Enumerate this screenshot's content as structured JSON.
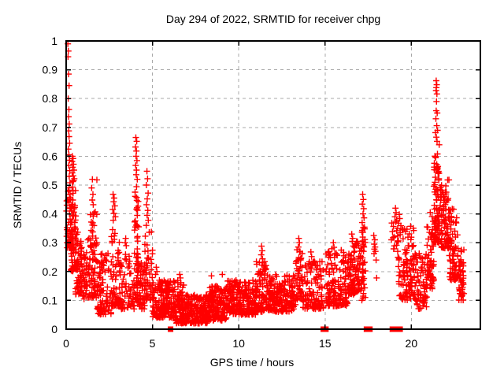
{
  "figure": {
    "background": "#ffffff"
  },
  "chart_data": {
    "type": "scatter",
    "title": "Day 294 of 2022, SRMTID for receiver chpg",
    "xlabel": "GPS time / hours",
    "ylabel": "SRMTID / TECUs",
    "series_name": "SRMTID",
    "xlim": [
      0,
      24
    ],
    "ylim": [
      0,
      1
    ],
    "xticks": [
      {
        "v": 0,
        "label": "0"
      },
      {
        "v": 5,
        "label": "5"
      },
      {
        "v": 10,
        "label": "10"
      },
      {
        "v": 15,
        "label": "15"
      },
      {
        "v": 20,
        "label": "20"
      }
    ],
    "yticks": [
      {
        "v": 0,
        "label": "0"
      },
      {
        "v": 0.1,
        "label": "0.1"
      },
      {
        "v": 0.2,
        "label": "0.2"
      },
      {
        "v": 0.3,
        "label": "0.3"
      },
      {
        "v": 0.4,
        "label": "0.4"
      },
      {
        "v": 0.5,
        "label": "0.5"
      },
      {
        "v": 0.6,
        "label": "0.6"
      },
      {
        "v": 0.7,
        "label": "0.7"
      },
      {
        "v": 0.8,
        "label": "0.8"
      },
      {
        "v": 0.9,
        "label": "0.9"
      },
      {
        "v": 1,
        "label": "1"
      }
    ],
    "grid": true,
    "legend": "none",
    "marker": "plus-cross",
    "colors": {
      "marker": "#ff0000",
      "grid": "#a8a8a8",
      "axis": "#000000",
      "text": "#000000",
      "background": "#ffffff"
    },
    "explicit_points": [
      [
        0.1,
        0.99
      ],
      [
        0.13,
        0.965
      ],
      [
        0.11,
        0.945
      ],
      [
        0.14,
        0.885
      ],
      [
        0.17,
        0.845
      ],
      [
        0.12,
        0.8
      ],
      [
        0.16,
        0.762
      ],
      [
        0.14,
        0.737
      ],
      [
        0.18,
        0.712
      ],
      [
        0.15,
        0.688
      ],
      [
        0.17,
        0.668
      ],
      [
        0.2,
        0.645
      ],
      [
        0.13,
        0.625
      ],
      [
        0.16,
        0.605
      ],
      [
        0.19,
        0.586
      ],
      [
        0.15,
        0.568
      ],
      [
        0.21,
        0.55
      ],
      [
        0.18,
        0.53
      ],
      [
        0.22,
        0.508
      ],
      [
        0.12,
        0.478
      ],
      [
        0.2,
        0.458
      ],
      [
        0.16,
        0.44
      ],
      [
        0.24,
        0.42
      ],
      [
        0.19,
        0.4
      ],
      [
        0.23,
        0.382
      ],
      [
        0.26,
        0.362
      ],
      [
        0.21,
        0.342
      ],
      [
        0.25,
        0.318
      ],
      [
        0.28,
        0.298
      ],
      [
        0.03,
        0.445
      ],
      [
        0.04,
        0.43
      ],
      [
        0.02,
        0.41
      ],
      [
        0.05,
        0.345
      ],
      [
        0.03,
        0.322
      ],
      [
        0.06,
        0.3
      ],
      [
        0.36,
        0.6
      ],
      [
        0.4,
        0.592
      ],
      [
        0.34,
        0.582
      ],
      [
        0.43,
        0.572
      ],
      [
        0.38,
        0.562
      ],
      [
        0.45,
        0.552
      ],
      [
        0.35,
        0.542
      ],
      [
        0.41,
        0.532
      ],
      [
        0.47,
        0.522
      ],
      [
        0.37,
        0.512
      ],
      [
        1.52,
        0.52
      ],
      [
        1.78,
        0.518
      ],
      [
        1.48,
        0.49
      ],
      [
        1.55,
        0.468
      ],
      [
        1.51,
        0.448
      ],
      [
        1.57,
        0.432
      ],
      [
        2.72,
        0.468
      ],
      [
        2.78,
        0.455
      ],
      [
        2.75,
        0.442
      ],
      [
        2.82,
        0.428
      ],
      [
        2.7,
        0.415
      ],
      [
        2.77,
        0.402
      ],
      [
        2.85,
        0.39
      ],
      [
        2.73,
        0.378
      ],
      [
        3.45,
        0.315
      ],
      [
        3.42,
        0.3
      ],
      [
        3.48,
        0.29
      ],
      [
        4.04,
        0.665
      ],
      [
        4.09,
        0.652
      ],
      [
        4.02,
        0.632
      ],
      [
        4.07,
        0.618
      ],
      [
        4.05,
        0.6
      ],
      [
        4.1,
        0.585
      ],
      [
        4.03,
        0.568
      ],
      [
        4.08,
        0.552
      ],
      [
        4.06,
        0.536
      ],
      [
        4.12,
        0.52
      ],
      [
        4.68,
        0.548
      ],
      [
        4.72,
        0.522
      ],
      [
        4.65,
        0.5
      ],
      [
        4.75,
        0.472
      ],
      [
        4.7,
        0.452
      ],
      [
        4.66,
        0.432
      ],
      [
        4.73,
        0.412
      ],
      [
        4.69,
        0.395
      ],
      [
        4.76,
        0.378
      ],
      [
        4.64,
        0.36
      ],
      [
        5.22,
        0.215
      ],
      [
        5.26,
        0.2
      ],
      [
        5.18,
        0.19
      ],
      [
        6.58,
        0.19
      ],
      [
        6.62,
        0.178
      ],
      [
        8.42,
        0.185
      ],
      [
        9.05,
        0.19
      ],
      [
        11.32,
        0.288
      ],
      [
        11.36,
        0.272
      ],
      [
        11.3,
        0.258
      ],
      [
        11.38,
        0.244
      ],
      [
        13.48,
        0.315
      ],
      [
        13.52,
        0.3
      ],
      [
        13.45,
        0.285
      ],
      [
        13.55,
        0.268
      ],
      [
        14.18,
        0.268
      ],
      [
        14.22,
        0.252
      ],
      [
        15.48,
        0.3
      ],
      [
        15.52,
        0.284
      ],
      [
        16.55,
        0.33
      ],
      [
        16.6,
        0.315
      ],
      [
        17.18,
        0.468
      ],
      [
        17.22,
        0.45
      ],
      [
        17.16,
        0.434
      ],
      [
        17.24,
        0.418
      ],
      [
        17.2,
        0.4
      ],
      [
        17.26,
        0.386
      ],
      [
        17.15,
        0.37
      ],
      [
        17.21,
        0.352
      ],
      [
        17.19,
        0.336
      ],
      [
        17.82,
        0.325
      ],
      [
        17.88,
        0.31
      ],
      [
        17.85,
        0.295
      ],
      [
        17.9,
        0.285
      ],
      [
        17.86,
        0.278
      ],
      [
        17.92,
        0.27
      ],
      [
        17.84,
        0.262
      ],
      [
        17.96,
        0.24
      ],
      [
        17.99,
        0.178
      ],
      [
        19.08,
        0.42
      ],
      [
        19.12,
        0.405
      ],
      [
        19.05,
        0.39
      ],
      [
        19.15,
        0.378
      ],
      [
        19.3,
        0.398
      ],
      [
        19.33,
        0.384
      ],
      [
        21.44,
        0.862
      ],
      [
        21.47,
        0.848
      ],
      [
        21.45,
        0.838
      ],
      [
        21.43,
        0.828
      ],
      [
        21.48,
        0.816
      ],
      [
        21.46,
        0.79
      ],
      [
        21.44,
        0.758
      ],
      [
        21.5,
        0.75
      ],
      [
        21.42,
        0.73
      ],
      [
        21.47,
        0.706
      ],
      [
        21.52,
        0.69
      ],
      [
        21.4,
        0.682
      ],
      [
        21.45,
        0.666
      ],
      [
        21.49,
        0.652
      ]
    ],
    "density_bands_format": [
      "x_start",
      "x_end",
      "y_min",
      "y_max",
      "count",
      "low_bias_exponent"
    ],
    "density_bands": [
      [
        0.05,
        0.3,
        0.28,
        0.5,
        22,
        1.3
      ],
      [
        0.28,
        0.58,
        0.2,
        0.52,
        80,
        1.8
      ],
      [
        0.55,
        0.9,
        0.12,
        0.34,
        55,
        1.6
      ],
      [
        0.9,
        1.25,
        0.1,
        0.27,
        38,
        1.4
      ],
      [
        1.25,
        1.78,
        0.11,
        0.42,
        75,
        1.9
      ],
      [
        1.78,
        2.6,
        0.05,
        0.27,
        90,
        1.6
      ],
      [
        2.6,
        3.1,
        0.08,
        0.37,
        60,
        1.7
      ],
      [
        3.1,
        3.95,
        0.07,
        0.26,
        70,
        1.7
      ],
      [
        3.95,
        4.2,
        0.1,
        0.5,
        65,
        1.9
      ],
      [
        4.2,
        4.55,
        0.07,
        0.23,
        40,
        1.4
      ],
      [
        4.55,
        5.0,
        0.1,
        0.34,
        55,
        1.7
      ],
      [
        5.0,
        6.3,
        0.04,
        0.17,
        180,
        1.5
      ],
      [
        6.3,
        8.3,
        0.02,
        0.12,
        260,
        1.4
      ],
      [
        6.45,
        6.85,
        0.07,
        0.17,
        22,
        1.2
      ],
      [
        8.3,
        9.3,
        0.03,
        0.15,
        140,
        1.4
      ],
      [
        9.3,
        11.0,
        0.05,
        0.17,
        220,
        1.4
      ],
      [
        11.0,
        11.6,
        0.06,
        0.24,
        80,
        1.6
      ],
      [
        11.6,
        13.3,
        0.06,
        0.19,
        200,
        1.4
      ],
      [
        13.3,
        13.7,
        0.1,
        0.28,
        42,
        1.5
      ],
      [
        13.7,
        14.9,
        0.07,
        0.24,
        120,
        1.5
      ],
      [
        15.05,
        16.3,
        0.08,
        0.28,
        140,
        1.5
      ],
      [
        16.3,
        17.1,
        0.12,
        0.31,
        110,
        1.3
      ],
      [
        17.1,
        17.35,
        0.1,
        0.37,
        38,
        1.6
      ],
      [
        18.85,
        19.25,
        0.24,
        0.38,
        20,
        1.1
      ],
      [
        19.25,
        20.3,
        0.1,
        0.37,
        120,
        1.4
      ],
      [
        20.3,
        20.9,
        0.07,
        0.27,
        58,
        1.3
      ],
      [
        20.9,
        21.3,
        0.14,
        0.42,
        58,
        1.4
      ],
      [
        21.3,
        21.65,
        0.3,
        0.64,
        85,
        1.7
      ],
      [
        21.65,
        22.2,
        0.28,
        0.52,
        80,
        1.3
      ],
      [
        22.2,
        22.7,
        0.17,
        0.44,
        68,
        1.5
      ],
      [
        22.7,
        23.05,
        0.1,
        0.29,
        48,
        1.4
      ]
    ],
    "zero_value_points_x": [
      6.05,
      14.9,
      15.05,
      17.4,
      17.6,
      18.9,
      19.0,
      19.25,
      19.35
    ]
  }
}
